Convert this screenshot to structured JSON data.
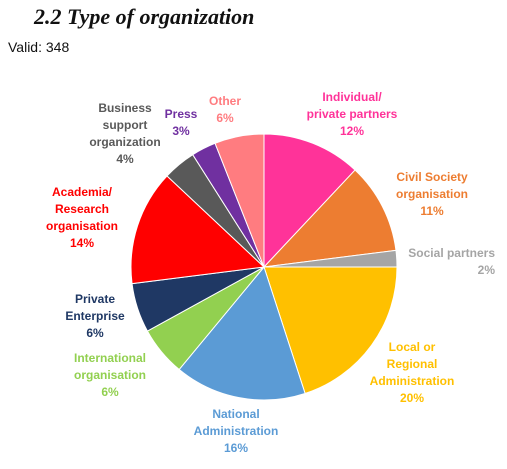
{
  "heading": {
    "title": "2.2 Type of organization",
    "valid_text": "Valid: 348"
  },
  "chart_data": {
    "type": "pie",
    "title": "2.2 Type of organization",
    "subtitle": "Valid: 348",
    "start_angle_deg": 0,
    "direction": "clockwise",
    "slices": [
      {
        "label": "Individual/ private partners",
        "lines": [
          "Individual/",
          "private partners"
        ],
        "pct_label": "12%",
        "value": 12,
        "color": "#ff3399"
      },
      {
        "label": "Civil Society organisation",
        "lines": [
          "Civil Society",
          "organisation"
        ],
        "pct_label": "11%",
        "value": 11,
        "color": "#ed7d31"
      },
      {
        "label": "Social partners",
        "lines": [
          "Social partners"
        ],
        "pct_label": "2%",
        "value": 2,
        "color": "#a5a5a5"
      },
      {
        "label": "Local or Regional Administration",
        "lines": [
          "Local or",
          "Regional",
          "Administration"
        ],
        "pct_label": "20%",
        "value": 20,
        "color": "#ffc000"
      },
      {
        "label": "National Administration",
        "lines": [
          "National",
          "Administration"
        ],
        "pct_label": "16%",
        "value": 16,
        "color": "#5b9bd5"
      },
      {
        "label": "International organisation",
        "lines": [
          "International",
          "organisation"
        ],
        "pct_label": "6%",
        "value": 6,
        "color": "#92d050"
      },
      {
        "label": "Private Enterprise",
        "lines": [
          "Private",
          "Enterprise"
        ],
        "pct_label": "6%",
        "value": 6,
        "color": "#1f3864"
      },
      {
        "label": "Academia/ Research organisation",
        "lines": [
          "Academia/",
          "Research",
          "organisation"
        ],
        "pct_label": "14%",
        "value": 14,
        "color": "#ff0000"
      },
      {
        "label": "Business support organization",
        "lines": [
          "Business",
          "support",
          "organization"
        ],
        "pct_label": "4%",
        "value": 4,
        "color": "#595959"
      },
      {
        "label": "Press",
        "lines": [
          "Press"
        ],
        "pct_label": "3%",
        "value": 3,
        "color": "#7030a0"
      },
      {
        "label": "Other",
        "lines": [
          "Other"
        ],
        "pct_label": "6%",
        "value": 6,
        "color": "#ff7c80"
      }
    ],
    "label_colors": {
      "Individual/ private partners": "#ff3399",
      "Civil Society organisation": "#ed7d31",
      "Social partners": "#a5a5a5",
      "Local or Regional Administration": "#ffc000",
      "National Administration": "#5b9bd5",
      "International organisation": "#92d050",
      "Private Enterprise": "#1f3864",
      "Academia/ Research organisation": "#ff0000",
      "Business support organization": "#595959",
      "Press": "#7030a0",
      "Other": "#ff7c80"
    }
  }
}
